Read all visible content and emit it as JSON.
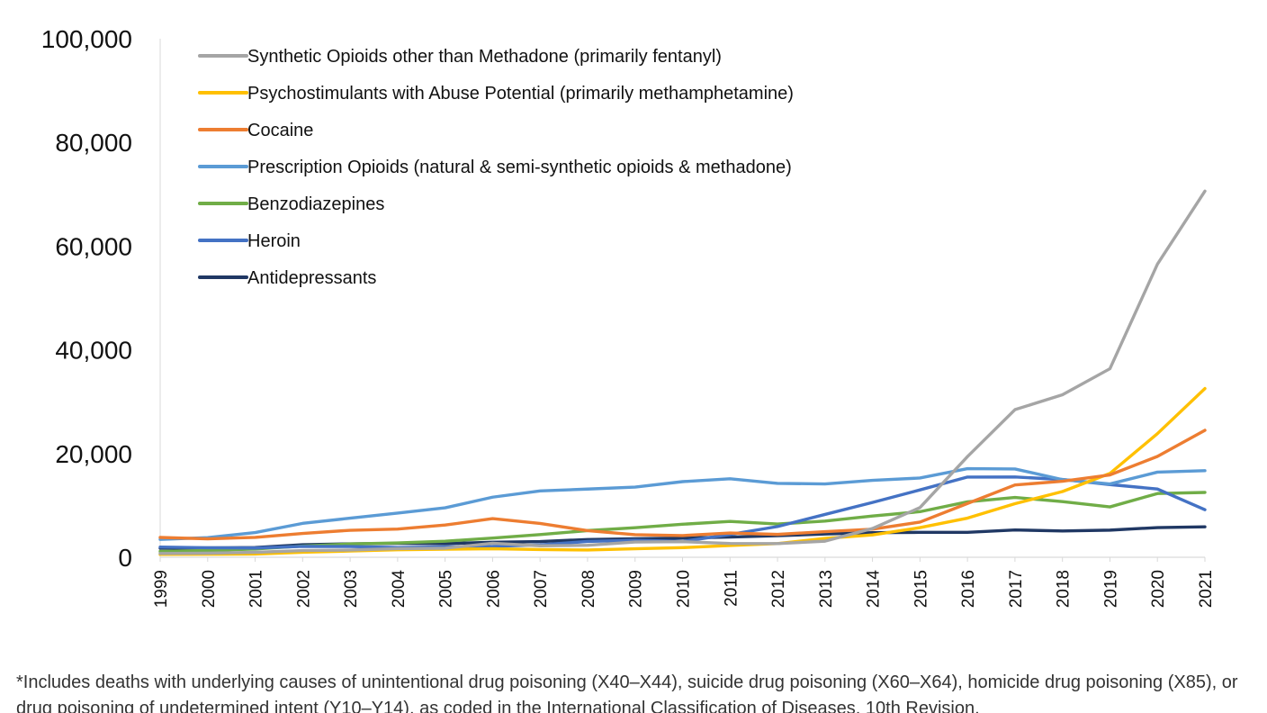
{
  "chart_data": {
    "type": "line",
    "title": "",
    "xlabel": "",
    "ylabel": "",
    "ylim": [
      0,
      100000
    ],
    "yticks": [
      0,
      20000,
      40000,
      60000,
      80000,
      100000
    ],
    "ytick_labels": [
      "0",
      "20,000",
      "40,000",
      "60,000",
      "80,000",
      "100,000"
    ],
    "grid": false,
    "legend_position": "top-left",
    "x": [
      "1999",
      "2000",
      "2001",
      "2002",
      "2003",
      "2004",
      "2005",
      "2006",
      "2007",
      "2008",
      "2009",
      "2010",
      "2011",
      "2012",
      "2013",
      "2014",
      "2015",
      "2016",
      "2017",
      "2018",
      "2019",
      "2020",
      "2021"
    ],
    "series": [
      {
        "name": "Synthetic Opioids other than Methadone (primarily fentanyl)",
        "color": "#A5A5A5",
        "values": [
          730,
          782,
          957,
          1295,
          1400,
          1664,
          1742,
          2707,
          2213,
          2306,
          2946,
          3007,
          2666,
          2628,
          3105,
          5544,
          9580,
          19413,
          28466,
          31335,
          36359,
          56516,
          70601
        ]
      },
      {
        "name": "Psychostimulants with Abuse Potential (primarily methamphetamine)",
        "color": "#FFC000",
        "values": [
          547,
          578,
          618,
          977,
          1199,
          1452,
          1548,
          1638,
          1483,
          1398,
          1632,
          1854,
          2266,
          2635,
          3627,
          4298,
          5716,
          7542,
          10333,
          12676,
          16167,
          23837,
          32537
        ]
      },
      {
        "name": "Cocaine",
        "color": "#ED7D31",
        "values": [
          3822,
          3544,
          3833,
          4599,
          5199,
          5443,
          6208,
          7448,
          6512,
          5129,
          4350,
          4183,
          4681,
          4404,
          4944,
          5415,
          6784,
          10375,
          13942,
          14666,
          15883,
          19447,
          24486
        ]
      },
      {
        "name": "Prescription Opioids (natural & semi-synthetic opioids & methadone)",
        "color": "#5B9BD5",
        "values": [
          3442,
          3785,
          4770,
          6533,
          7538,
          8518,
          9537,
          11589,
          12796,
          13149,
          13523,
          14583,
          15140,
          14240,
          14145,
          14838,
          15281,
          17087,
          17029,
          14975,
          14139,
          16416,
          16706
        ]
      },
      {
        "name": "Benzodiazepines",
        "color": "#70AD47",
        "values": [
          1135,
          1298,
          1594,
          2153,
          2569,
          2758,
          3097,
          3691,
          4374,
          5144,
          5692,
          6363,
          6916,
          6407,
          6973,
          7945,
          8791,
          10684,
          11537,
          10724,
          9711,
          12290,
          12499
        ]
      },
      {
        "name": "Heroin",
        "color": "#4472C4",
        "values": [
          1960,
          1842,
          1779,
          2089,
          2080,
          1878,
          2009,
          2088,
          2399,
          3041,
          3278,
          3036,
          4397,
          5925,
          8257,
          10574,
          12989,
          15469,
          15482,
          14996,
          14019,
          13165,
          9173
        ]
      },
      {
        "name": "Antidepressants",
        "color": "#203864",
        "values": [
          1749,
          1804,
          1880,
          2422,
          2583,
          2682,
          2622,
          2894,
          3032,
          3426,
          3576,
          3700,
          3889,
          4158,
          4480,
          4741,
          4803,
          4813,
          5269,
          5064,
          5231,
          5723,
          5867
        ]
      }
    ]
  },
  "footnote": {
    "line1": "*Includes deaths with underlying causes of unintentional drug poisoning (X40–X44), suicide drug poisoning (X60–X64), homicide drug",
    "line2": "poisoning (X85), or drug poisoning of undetermined intent (Y10–Y14), as coded in the International Classification of Diseases, 10th Revision."
  }
}
